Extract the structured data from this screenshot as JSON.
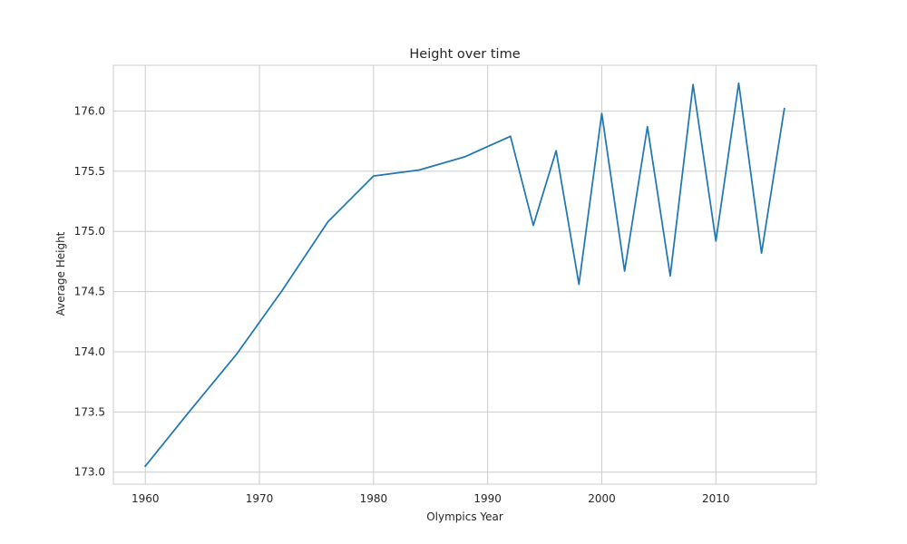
{
  "chart_data": {
    "type": "line",
    "title": "Height over time",
    "xlabel": "Olympics Year",
    "ylabel": "Average Height",
    "xlim": [
      1957.2,
      2018.8
    ],
    "ylim": [
      172.9,
      176.38
    ],
    "xticks": [
      1960,
      1970,
      1980,
      1990,
      2000,
      2010
    ],
    "xtick_labels": [
      "1960",
      "1970",
      "1980",
      "1990",
      "2000",
      "2010"
    ],
    "yticks": [
      173.0,
      173.5,
      174.0,
      174.5,
      175.0,
      175.5,
      176.0
    ],
    "ytick_labels": [
      "173.0",
      "173.5",
      "174.0",
      "174.5",
      "175.0",
      "175.5",
      "176.0"
    ],
    "grid": true,
    "series": [
      {
        "color": "#1f77b4",
        "x": [
          1960,
          1964,
          1968,
          1972,
          1976,
          1980,
          1984,
          1988,
          1992,
          1994,
          1996,
          1998,
          2000,
          2002,
          2004,
          2006,
          2008,
          2010,
          2012,
          2014,
          2016
        ],
        "y": [
          173.05,
          173.52,
          173.98,
          174.51,
          175.08,
          175.46,
          175.51,
          175.62,
          175.79,
          175.05,
          175.67,
          174.56,
          175.98,
          174.67,
          175.87,
          174.63,
          176.22,
          174.92,
          176.23,
          174.82,
          176.02
        ]
      }
    ]
  },
  "colors": {
    "grid": "#cccccc",
    "background": "#ffffff",
    "text": "#262626"
  }
}
